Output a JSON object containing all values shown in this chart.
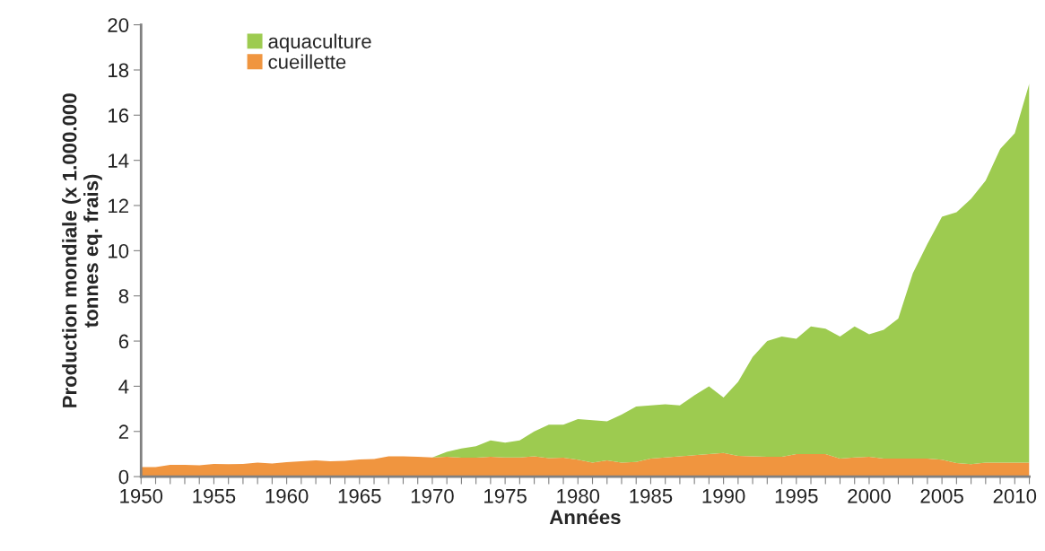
{
  "chart_data": {
    "type": "area",
    "stacked": true,
    "xlabel": "Années",
    "ylabel": "Production mondiale (x 1.000.000\ntonnes eq. frais)",
    "x": [
      1950,
      1951,
      1952,
      1953,
      1954,
      1955,
      1956,
      1957,
      1958,
      1959,
      1960,
      1961,
      1962,
      1963,
      1964,
      1965,
      1966,
      1967,
      1968,
      1969,
      1970,
      1971,
      1972,
      1973,
      1974,
      1975,
      1976,
      1977,
      1978,
      1979,
      1980,
      1981,
      1982,
      1983,
      1984,
      1985,
      1986,
      1987,
      1988,
      1989,
      1990,
      1991,
      1992,
      1993,
      1994,
      1995,
      1996,
      1997,
      1998,
      1999,
      2000,
      2001,
      2002,
      2003,
      2004,
      2005,
      2006,
      2007,
      2008,
      2009,
      2010,
      2011
    ],
    "series": [
      {
        "name": "cueillette",
        "color": "#f0953f",
        "values": [
          0.42,
          0.42,
          0.52,
          0.52,
          0.5,
          0.56,
          0.55,
          0.56,
          0.62,
          0.58,
          0.64,
          0.68,
          0.72,
          0.68,
          0.7,
          0.76,
          0.78,
          0.9,
          0.9,
          0.88,
          0.85,
          0.88,
          0.84,
          0.84,
          0.88,
          0.85,
          0.85,
          0.9,
          0.82,
          0.84,
          0.75,
          0.62,
          0.72,
          0.62,
          0.65,
          0.8,
          0.85,
          0.9,
          0.95,
          1.0,
          1.05,
          0.92,
          0.9,
          0.88,
          0.88,
          1.0,
          1.0,
          1.0,
          0.8,
          0.85,
          0.88,
          0.8,
          0.8,
          0.8,
          0.8,
          0.75,
          0.6,
          0.55,
          0.62,
          0.62,
          0.62,
          0.62
        ]
      },
      {
        "name": "aquaculture",
        "color": "#9dcb50",
        "values": [
          0,
          0,
          0,
          0,
          0,
          0,
          0,
          0,
          0,
          0,
          0,
          0,
          0,
          0,
          0,
          0,
          0,
          0,
          0,
          0,
          0,
          0.22,
          0.41,
          0.51,
          0.72,
          0.65,
          0.75,
          1.1,
          1.48,
          1.46,
          1.8,
          1.88,
          1.73,
          2.13,
          2.45,
          2.35,
          2.35,
          2.25,
          2.65,
          3.0,
          2.45,
          3.28,
          4.4,
          5.12,
          5.32,
          5.1,
          5.65,
          5.55,
          5.4,
          5.8,
          5.42,
          5.7,
          6.2,
          8.2,
          9.5,
          10.75,
          11.1,
          11.75,
          12.48,
          13.88,
          14.58,
          16.78
        ]
      }
    ],
    "xlim": [
      1950,
      2011
    ],
    "xticks": [
      1950,
      {
        "value": 1951,
        "label": null
      },
      {
        "value": 1952,
        "label": null
      },
      {
        "value": 1953,
        "label": null
      },
      {
        "value": 1954,
        "label": null
      },
      1955,
      {
        "value": 1956,
        "label": null
      },
      {
        "value": 1957,
        "label": null
      },
      {
        "value": 1958,
        "label": null
      },
      {
        "value": 1959,
        "label": null
      },
      1960,
      {
        "value": 1961,
        "label": null
      },
      {
        "value": 1962,
        "label": null
      },
      {
        "value": 1963,
        "label": null
      },
      {
        "value": 1964,
        "label": null
      },
      1965,
      {
        "value": 1966,
        "label": null
      },
      {
        "value": 1967,
        "label": null
      },
      {
        "value": 1968,
        "label": null
      },
      {
        "value": 1969,
        "label": null
      },
      1970,
      {
        "value": 1971,
        "label": null
      },
      {
        "value": 1972,
        "label": null
      },
      {
        "value": 1973,
        "label": null
      },
      {
        "value": 1974,
        "label": null
      },
      1975,
      {
        "value": 1976,
        "label": null
      },
      {
        "value": 1977,
        "label": null
      },
      {
        "value": 1978,
        "label": null
      },
      {
        "value": 1979,
        "label": null
      },
      1980,
      {
        "value": 1981,
        "label": null
      },
      {
        "value": 1982,
        "label": null
      },
      {
        "value": 1983,
        "label": null
      },
      {
        "value": 1984,
        "label": null
      },
      1985,
      {
        "value": 1986,
        "label": null
      },
      {
        "value": 1987,
        "label": null
      },
      {
        "value": 1988,
        "label": null
      },
      {
        "value": 1989,
        "label": null
      },
      1990,
      {
        "value": 1991,
        "label": null
      },
      {
        "value": 1992,
        "label": null
      },
      {
        "value": 1993,
        "label": null
      },
      {
        "value": 1994,
        "label": null
      },
      1995,
      {
        "value": 1996,
        "label": null
      },
      {
        "value": 1997,
        "label": null
      },
      {
        "value": 1998,
        "label": null
      },
      {
        "value": 1999,
        "label": null
      },
      2000,
      {
        "value": 2001,
        "label": null
      },
      {
        "value": 2002,
        "label": null
      },
      {
        "value": 2003,
        "label": null
      },
      {
        "value": 2004,
        "label": null
      },
      2005,
      {
        "value": 2006,
        "label": null
      },
      {
        "value": 2007,
        "label": null
      },
      {
        "value": 2008,
        "label": null
      },
      {
        "value": 2009,
        "label": null
      },
      2010,
      {
        "value": 2011,
        "label": null
      }
    ],
    "ylim": [
      0,
      20
    ],
    "yticks": [
      0,
      2,
      4,
      6,
      8,
      10,
      12,
      14,
      16,
      18,
      20
    ],
    "grid": false,
    "legend": "top left"
  }
}
